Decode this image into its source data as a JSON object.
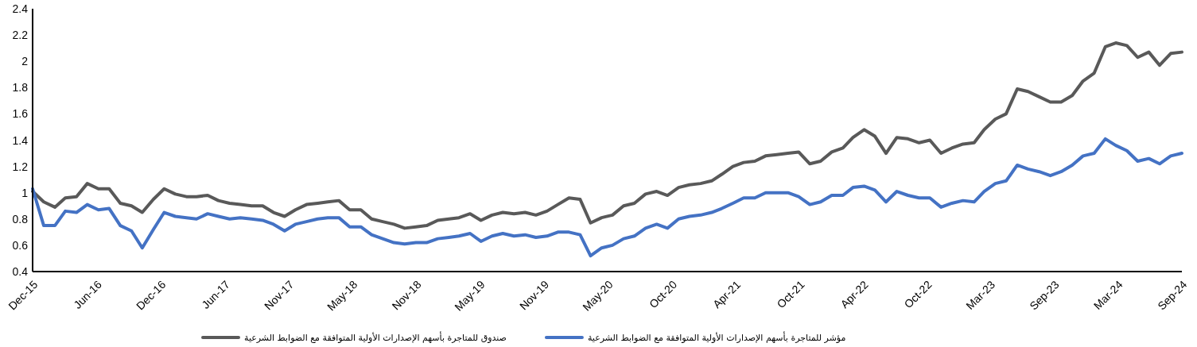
{
  "chart_data": {
    "type": "line",
    "x": [
      "2015-12-15",
      "2016-01-15",
      "2016-02-15",
      "2016-03-15",
      "2016-04-15",
      "2016-05-15",
      "2016-06-15",
      "2016-07-15",
      "2016-08-15",
      "2016-09-15",
      "2016-10-15",
      "2016-11-15",
      "2016-12-15",
      "2017-01-15",
      "2017-02-15",
      "2017-03-15",
      "2017-04-15",
      "2017-05-15",
      "2017-06-15",
      "2017-07-15",
      "2017-08-15",
      "2017-09-15",
      "2017-10-15",
      "2017-11-15",
      "2017-12-15",
      "2018-01-15",
      "2018-02-15",
      "2018-03-15",
      "2018-04-15",
      "2018-05-15",
      "2018-06-15",
      "2018-07-15",
      "2018-08-15",
      "2018-09-15",
      "2018-10-15",
      "2018-11-15",
      "2018-12-15",
      "2019-01-15",
      "2019-02-15",
      "2019-03-15",
      "2019-04-15",
      "2019-05-15",
      "2019-06-15",
      "2019-07-15",
      "2019-08-15",
      "2019-09-15",
      "2019-10-15",
      "2019-11-15",
      "2019-12-15",
      "2020-01-15",
      "2020-02-15",
      "2020-03-15",
      "2020-04-15",
      "2020-05-15",
      "2020-06-15",
      "2020-07-15",
      "2020-08-15",
      "2020-09-15",
      "2020-10-15",
      "2020-11-15",
      "2020-12-15",
      "2021-01-15",
      "2021-02-15",
      "2021-03-15",
      "2021-04-15",
      "2021-05-15",
      "2021-06-15",
      "2021-07-15",
      "2021-08-15",
      "2021-09-15",
      "2021-10-15",
      "2021-11-15",
      "2021-12-15",
      "2022-01-15",
      "2022-02-15",
      "2022-03-15",
      "2022-04-15",
      "2022-05-15",
      "2022-06-15",
      "2022-07-15",
      "2022-08-15",
      "2022-09-15",
      "2022-10-15",
      "2022-11-15",
      "2022-12-15",
      "2023-01-15",
      "2023-02-15",
      "2023-03-15",
      "2023-04-15",
      "2023-05-15",
      "2023-06-15",
      "2023-07-15",
      "2023-08-15",
      "2023-09-15",
      "2023-10-15",
      "2023-11-15",
      "2023-12-15",
      "2024-01-15",
      "2024-02-15",
      "2024-03-15",
      "2024-04-15",
      "2024-05-15",
      "2024-06-15",
      "2024-07-15",
      "2024-08-15",
      "2024-09-15"
    ],
    "series": [
      {
        "name": "صندوق للمتاجرة بأسهم الإصدارات الأولية المتوافقة مع الضوابط الشرعية",
        "color": "#595959",
        "values": [
          1.01,
          0.93,
          0.89,
          0.96,
          0.97,
          1.07,
          1.03,
          1.03,
          0.92,
          0.9,
          0.85,
          0.95,
          1.03,
          0.99,
          0.97,
          0.97,
          0.98,
          0.94,
          0.92,
          0.91,
          0.9,
          0.9,
          0.85,
          0.82,
          0.87,
          0.91,
          0.92,
          0.93,
          0.94,
          0.87,
          0.87,
          0.8,
          0.78,
          0.76,
          0.73,
          0.74,
          0.75,
          0.79,
          0.8,
          0.81,
          0.84,
          0.79,
          0.83,
          0.85,
          0.84,
          0.85,
          0.83,
          0.86,
          0.91,
          0.96,
          0.95,
          0.77,
          0.81,
          0.83,
          0.9,
          0.92,
          0.99,
          1.01,
          0.98,
          1.04,
          1.06,
          1.07,
          1.09,
          1.14,
          1.2,
          1.23,
          1.24,
          1.28,
          1.29,
          1.3,
          1.31,
          1.22,
          1.24,
          1.31,
          1.34,
          1.42,
          1.48,
          1.43,
          1.3,
          1.42,
          1.41,
          1.38,
          1.4,
          1.3,
          1.34,
          1.37,
          1.38,
          1.48,
          1.56,
          1.6,
          1.79,
          1.77,
          1.73,
          1.69,
          1.69,
          1.74,
          1.85,
          1.91,
          2.11,
          2.14,
          2.12,
          2.03,
          2.07,
          1.97,
          2.06,
          2.07
        ]
      },
      {
        "name": "مؤشر للمتاجرة بأسهم الإصدارات الأولية المتوافقة مع الضوابط الشرعية",
        "color": "#4472c4",
        "values": [
          1.03,
          0.75,
          0.75,
          0.86,
          0.85,
          0.91,
          0.87,
          0.88,
          0.75,
          0.71,
          0.58,
          0.72,
          0.85,
          0.82,
          0.81,
          0.8,
          0.84,
          0.82,
          0.8,
          0.81,
          0.8,
          0.79,
          0.76,
          0.71,
          0.76,
          0.78,
          0.8,
          0.81,
          0.81,
          0.74,
          0.74,
          0.68,
          0.65,
          0.62,
          0.61,
          0.62,
          0.62,
          0.65,
          0.66,
          0.67,
          0.69,
          0.63,
          0.67,
          0.69,
          0.67,
          0.68,
          0.66,
          0.67,
          0.7,
          0.7,
          0.68,
          0.52,
          0.58,
          0.6,
          0.65,
          0.67,
          0.73,
          0.76,
          0.73,
          0.8,
          0.82,
          0.83,
          0.85,
          0.88,
          0.92,
          0.96,
          0.96,
          1.0,
          1.0,
          1.0,
          0.97,
          0.91,
          0.93,
          0.98,
          0.98,
          1.04,
          1.05,
          1.02,
          0.93,
          1.01,
          0.98,
          0.96,
          0.96,
          0.89,
          0.92,
          0.94,
          0.93,
          1.01,
          1.07,
          1.09,
          1.21,
          1.18,
          1.16,
          1.13,
          1.16,
          1.21,
          1.28,
          1.3,
          1.41,
          1.36,
          1.32,
          1.24,
          1.26,
          1.22,
          1.28,
          1.3
        ]
      }
    ],
    "xlim": [
      "2015-12-15",
      "2024-09-15"
    ],
    "xticks": [
      {
        "value": "2015-12-15",
        "label": "Dec-15"
      },
      {
        "value": "2016-06-10",
        "label": "Jun-16"
      },
      {
        "value": "2016-12-05",
        "label": "Dec-16"
      },
      {
        "value": "2017-06-01",
        "label": "Jun-17"
      },
      {
        "value": "2017-11-26",
        "label": "Nov-17"
      },
      {
        "value": "2018-05-22",
        "label": "May-18"
      },
      {
        "value": "2018-11-16",
        "label": "Nov-18"
      },
      {
        "value": "2019-05-12",
        "label": "May-19"
      },
      {
        "value": "2019-11-06",
        "label": "Nov-19"
      },
      {
        "value": "2020-05-02",
        "label": "May-20"
      },
      {
        "value": "2020-10-27",
        "label": "Oct-20"
      },
      {
        "value": "2021-04-22",
        "label": "Apr-21"
      },
      {
        "value": "2021-10-17",
        "label": "Oct-21"
      },
      {
        "value": "2022-04-12",
        "label": "Apr-22"
      },
      {
        "value": "2022-10-06",
        "label": "Oct-22"
      },
      {
        "value": "2023-03-31",
        "label": "Mar-23"
      },
      {
        "value": "2023-09-25",
        "label": "Sep-23"
      },
      {
        "value": "2024-03-20",
        "label": "Mar-24"
      },
      {
        "value": "2024-09-15",
        "label": "Sep-24"
      }
    ],
    "ylim": [
      0.4,
      2.4
    ],
    "yticks": [
      0.4,
      0.6,
      0.8,
      1,
      1.2,
      1.4,
      1.6,
      1.8,
      2,
      2.2,
      2.4
    ],
    "legend": "bottom",
    "marker": "none",
    "line_style": "solid"
  }
}
